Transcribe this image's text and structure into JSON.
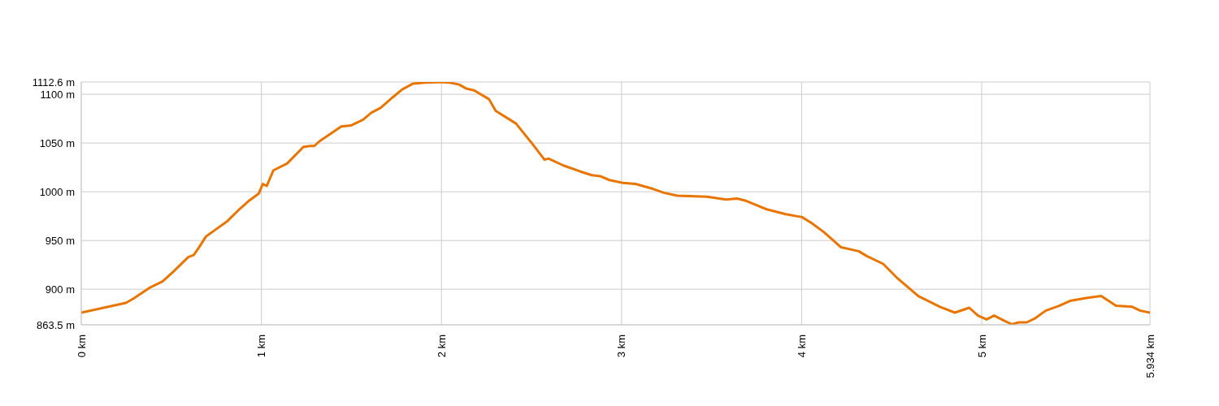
{
  "chart_data": {
    "type": "line",
    "grid": true,
    "marker": "none",
    "line_style": "solid",
    "xlim": [
      0,
      5.934
    ],
    "ylim": [
      863.5,
      1112.6
    ],
    "xticks": [
      {
        "value": 0,
        "label": "0 km"
      },
      {
        "value": 1,
        "label": "1 km"
      },
      {
        "value": 2,
        "label": "2 km"
      },
      {
        "value": 3,
        "label": "3 km"
      },
      {
        "value": 4,
        "label": "4 km"
      },
      {
        "value": 5,
        "label": "5 km"
      },
      {
        "value": 5.934,
        "label": "5.934 km"
      }
    ],
    "yticks": [
      {
        "value": 863.5,
        "label": "863.5 m"
      },
      {
        "value": 900,
        "label": "900 m"
      },
      {
        "value": 950,
        "label": "950 m"
      },
      {
        "value": 1000,
        "label": "1000 m"
      },
      {
        "value": 1050,
        "label": "1050 m"
      },
      {
        "value": 1100,
        "label": "1100 m"
      },
      {
        "value": 1112.6,
        "label": "1112.6 m"
      }
    ],
    "series": [
      {
        "color": "#e87500",
        "x": [
          0,
          0.248,
          0.286,
          0.384,
          0.451,
          0.511,
          0.594,
          0.624,
          0.654,
          0.692,
          0.767,
          0.812,
          0.872,
          0.933,
          0.985,
          1.008,
          1.03,
          1.067,
          1.143,
          1.233,
          1.271,
          1.294,
          1.324,
          1.444,
          1.497,
          1.565,
          1.61,
          1.662,
          1.73,
          1.782,
          1.843,
          1.91,
          2.0,
          2.046,
          2.098,
          2.136,
          2.181,
          2.264,
          2.301,
          2.414,
          2.497,
          2.572,
          2.595,
          2.677,
          2.768,
          2.835,
          2.881,
          2.933,
          3.009,
          3.077,
          3.174,
          3.235,
          3.31,
          3.475,
          3.58,
          3.641,
          3.686,
          3.806,
          3.911,
          4.002,
          4.054,
          4.121,
          4.219,
          4.317,
          4.362,
          4.453,
          4.528,
          4.648,
          4.768,
          4.851,
          4.931,
          4.979,
          5.027,
          5.069,
          5.122,
          5.167,
          5.205,
          5.25,
          5.295,
          5.355,
          5.43,
          5.49,
          5.581,
          5.663,
          5.746,
          5.836,
          5.881,
          5.934
        ],
        "values": [
          876,
          886,
          890,
          902,
          908,
          918,
          933,
          935,
          943,
          954,
          964,
          970,
          981,
          991,
          998,
          1008,
          1006,
          1022,
          1029,
          1046,
          1047,
          1047,
          1052,
          1067,
          1068,
          1074,
          1081,
          1086,
          1097,
          1105,
          1111,
          1112,
          1112.6,
          1112,
          1110,
          1106,
          1104,
          1095,
          1083,
          1070,
          1051,
          1033,
          1034,
          1027,
          1021,
          1017,
          1016,
          1012,
          1009,
          1008,
          1003,
          999,
          996,
          995,
          992,
          993,
          991,
          982,
          977,
          974,
          968,
          959,
          943,
          939,
          934,
          926,
          912,
          893,
          882,
          876,
          881,
          873,
          869,
          873,
          868,
          864,
          866,
          866,
          870,
          878,
          883,
          888,
          891,
          893,
          883,
          882,
          878,
          876
        ]
      }
    ]
  }
}
